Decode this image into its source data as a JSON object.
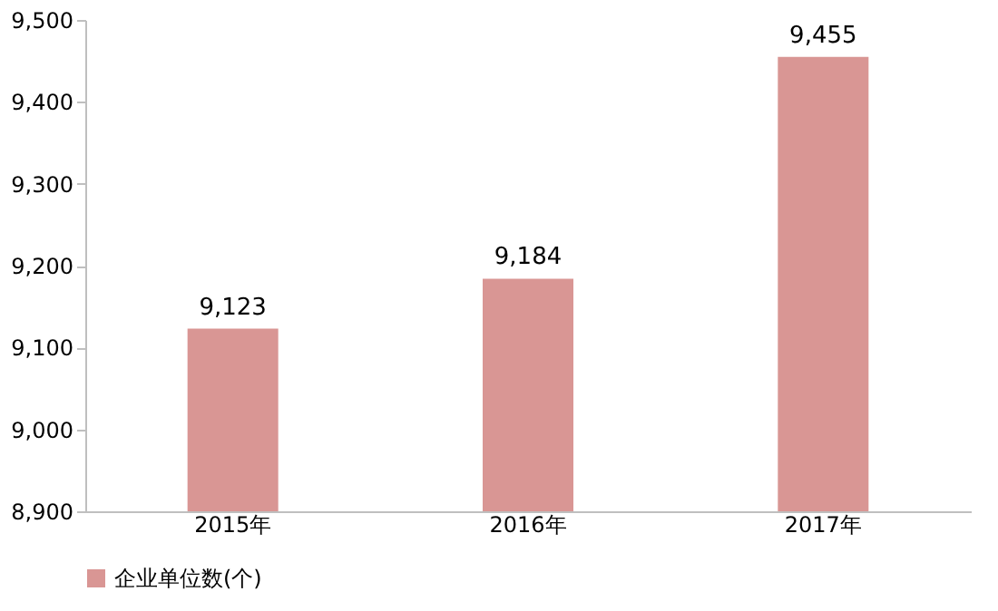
{
  "chart_data": {
    "type": "bar",
    "categories": [
      "2015年",
      "2016年",
      "2017年"
    ],
    "series": [
      {
        "name": "企业单位数(个)",
        "color": "#d99694",
        "values": [
          9123,
          9184,
          9455
        ],
        "value_labels": [
          "9,123",
          "9,184",
          "9,455"
        ]
      }
    ],
    "ylim": [
      8900,
      9500
    ],
    "yticks": [
      {
        "value": 8900,
        "label": "8,900"
      },
      {
        "value": 9000,
        "label": "9,000"
      },
      {
        "value": 9100,
        "label": "9,100"
      },
      {
        "value": 9200,
        "label": "9,200"
      },
      {
        "value": 9300,
        "label": "9,300"
      },
      {
        "value": 9400,
        "label": "9,400"
      },
      {
        "value": 9500,
        "label": "9,500"
      }
    ],
    "legend": "bottom",
    "grid": false
  }
}
